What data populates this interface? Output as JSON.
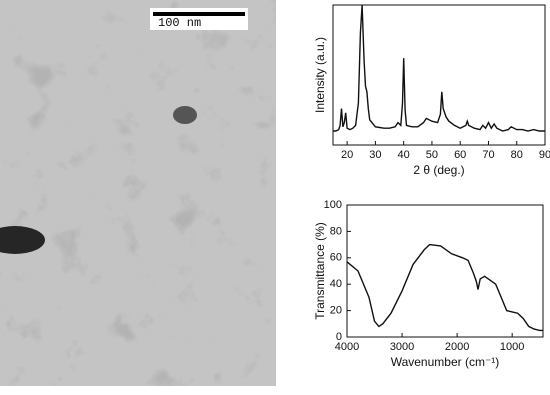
{
  "image": {
    "scale_bar": "100 nm"
  },
  "chart_data": [
    {
      "type": "line",
      "y_label": "Intensity (a.u.)",
      "x_label": "2 θ (deg.)",
      "color": "#111111",
      "xlim": [
        15,
        90
      ],
      "xticks": [
        20,
        30,
        40,
        50,
        60,
        70,
        80,
        90
      ],
      "ylim": [
        0,
        100
      ],
      "x": [
        15,
        16,
        17,
        17.5,
        18,
        18.5,
        19,
        19.5,
        20,
        21,
        22,
        23,
        24,
        24.7,
        25.3,
        26,
        26.5,
        27,
        27.5,
        28,
        30,
        33,
        35,
        37,
        38,
        39,
        39.6,
        40,
        40.5,
        41,
        43,
        45,
        47,
        48,
        50,
        52,
        53,
        53.5,
        54,
        55,
        56,
        58,
        60,
        62,
        62.5,
        63,
        65,
        67,
        68,
        69,
        70,
        71,
        72,
        73,
        75,
        77,
        78,
        80,
        82,
        84,
        86,
        88,
        90
      ],
      "values": [
        10,
        10,
        11,
        14,
        26,
        13,
        16,
        23,
        12,
        11,
        12,
        14,
        30,
        80,
        100,
        60,
        42,
        38,
        26,
        18,
        13,
        12,
        12,
        13,
        16,
        14,
        30,
        62,
        25,
        14,
        13,
        13,
        16,
        19,
        17,
        16,
        22,
        38,
        26,
        20,
        17,
        14,
        12,
        14,
        17,
        14,
        12,
        11,
        14,
        12,
        16,
        12,
        15,
        12,
        10,
        11,
        13,
        11,
        11,
        10,
        11,
        10,
        10
      ]
    },
    {
      "type": "line",
      "y_label": "Transmittance (%)",
      "x_label": "Wavenumber (cm⁻¹)",
      "color": "#111111",
      "xlim": [
        4000,
        440
      ],
      "xticks": [
        4000,
        3000,
        2000,
        1000
      ],
      "ylim": [
        0,
        100
      ],
      "yticks": [
        0,
        20,
        40,
        60,
        80,
        100
      ],
      "x": [
        4000,
        3800,
        3600,
        3500,
        3420,
        3350,
        3200,
        3000,
        2800,
        2600,
        2500,
        2300,
        2100,
        1900,
        1800,
        1700,
        1650,
        1620,
        1580,
        1500,
        1400,
        1300,
        1200,
        1100,
        1000,
        900,
        800,
        700,
        600,
        500,
        440
      ],
      "values": [
        57,
        50,
        30,
        12,
        8,
        10,
        18,
        35,
        55,
        66,
        70,
        69,
        63,
        60,
        58,
        48,
        42,
        36,
        44,
        46,
        43,
        40,
        30,
        20,
        19,
        18,
        14,
        8,
        6,
        5,
        5
      ]
    }
  ]
}
